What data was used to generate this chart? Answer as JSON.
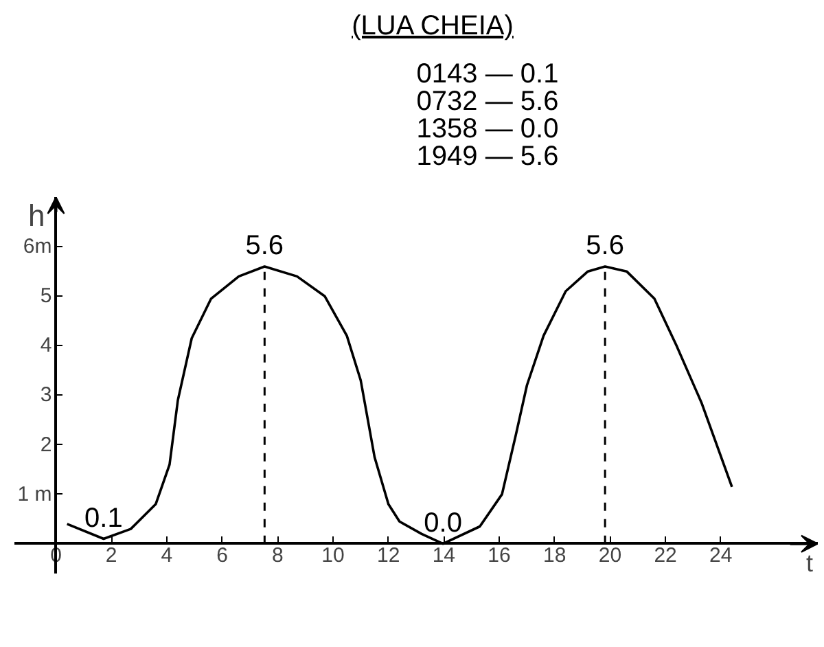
{
  "chart_data": {
    "type": "line",
    "subtitle": "(LUA CHEIA)",
    "xlabel": "t",
    "ylabel": "h",
    "annotations": [
      "0143 — 0.1",
      "0732 — 5.6",
      "1358 — 0.0",
      "1949 — 5.6",
      {
        "text": "0.1",
        "x": 1.72,
        "y": 0.1
      },
      {
        "text": "5.6",
        "x": 7.53,
        "y": 5.6
      },
      {
        "text": "0.0",
        "x": 13.97,
        "y": 0.0
      },
      {
        "text": "5.6",
        "x": 19.82,
        "y": 5.6
      }
    ],
    "series": [
      {
        "color": "#000000",
        "x": [
          0.4,
          1.72,
          2.7,
          3.6,
          4.1,
          4.4,
          4.9,
          5.6,
          6.6,
          7.53,
          8.7,
          9.7,
          10.5,
          11.0,
          11.5,
          12.0,
          12.4,
          13.2,
          13.97,
          15.3,
          16.1,
          16.6,
          17.0,
          17.6,
          18.4,
          19.2,
          19.82,
          20.6,
          21.6,
          22.4,
          23.3,
          24.4
        ],
        "values": [
          0.4,
          0.1,
          0.3,
          0.8,
          1.6,
          2.9,
          4.15,
          4.95,
          5.4,
          5.6,
          5.4,
          5.0,
          4.2,
          3.3,
          1.75,
          0.8,
          0.45,
          0.2,
          0.0,
          0.35,
          1.0,
          2.2,
          3.2,
          4.2,
          5.1,
          5.5,
          5.6,
          5.5,
          4.95,
          4.0,
          2.85,
          1.15
        ]
      }
    ],
    "ref_lines": [
      {
        "axis": "x",
        "value": 7.53,
        "line_style": "dashed"
      },
      {
        "axis": "x",
        "value": 19.82,
        "line_style": "dashed"
      }
    ],
    "xlim": [
      -1.5,
      27.5
    ],
    "ylim": [
      -0.6,
      7.0
    ],
    "xticks": [
      0,
      2,
      4,
      6,
      8,
      10,
      12,
      14,
      16,
      18,
      20,
      22,
      24
    ],
    "yticks": [
      {
        "value": 1,
        "label": "1 m"
      },
      2,
      3,
      4,
      5,
      {
        "value": 6,
        "label": "6m"
      }
    ],
    "grid": false,
    "marker": "none",
    "line_style": "solid"
  }
}
